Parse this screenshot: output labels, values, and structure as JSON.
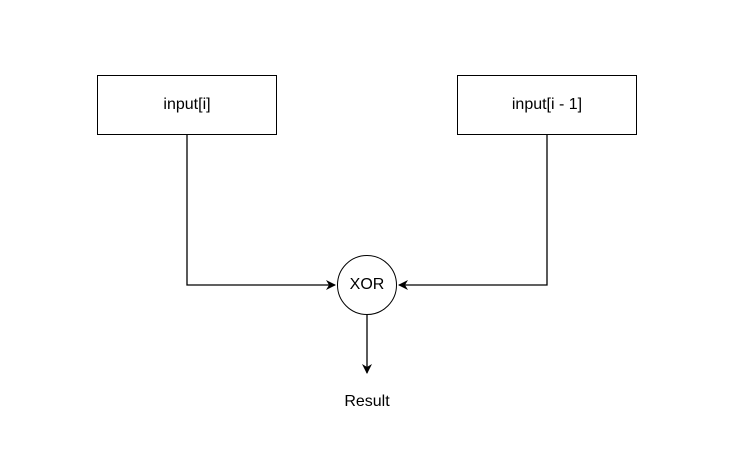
{
  "diagram": {
    "nodes": {
      "left_input": "input[i]",
      "right_input": "input[i - 1]",
      "gate": "XOR",
      "output": "Result"
    },
    "edges": [
      {
        "from": "input[i]",
        "to": "XOR"
      },
      {
        "from": "input[i - 1]",
        "to": "XOR"
      },
      {
        "from": "XOR",
        "to": "Result"
      }
    ]
  },
  "colors": {
    "stroke": "#000000",
    "fill": "#ffffff"
  }
}
